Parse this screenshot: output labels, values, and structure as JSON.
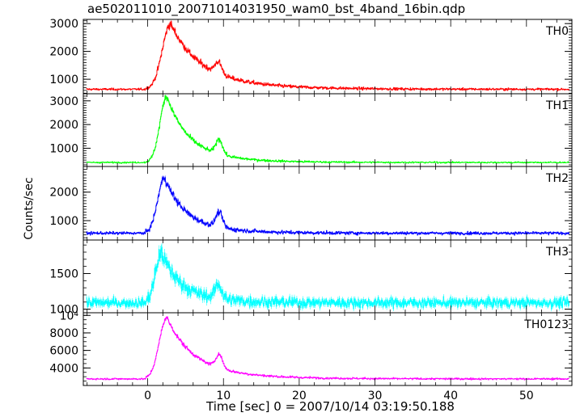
{
  "figure": {
    "title": "ae502011010_20071014031950_wam0_bst_4band_16bin.qdp",
    "xlabel": "Time [sec] 0 = 2007/10/14 03:19:50.188",
    "ylabel": "Counts/sec"
  },
  "chart_data": [
    {
      "type": "line",
      "panel": "TH0",
      "series": [
        {
          "name": "TH0",
          "color": "#ff0000"
        }
      ],
      "xlim": [
        -8.5,
        56
      ],
      "ylim": [
        480,
        3150
      ],
      "yticks": [
        1000,
        2000,
        3000
      ],
      "ytick_labels": [
        "1000",
        "2000",
        "3000"
      ],
      "profile": {
        "baseline": 640,
        "noise": 30,
        "peak1_t": 3.0,
        "peak1_amp": 2350,
        "peak2_t": 9.3,
        "peak2_amp": 420,
        "rise_tau": 1.1,
        "decay_tau": 3.6
      }
    },
    {
      "type": "line",
      "panel": "TH1",
      "series": [
        {
          "name": "TH1",
          "color": "#00ff00"
        }
      ],
      "xlim": [
        -8.5,
        56
      ],
      "ylim": [
        230,
        3300
      ],
      "yticks": [
        1000,
        2000,
        3000
      ],
      "ytick_labels": [
        "1000",
        "2000",
        "3000"
      ],
      "profile": {
        "baseline": 400,
        "noise": 25,
        "peak1_t": 2.5,
        "peak1_amp": 2800,
        "peak2_t": 9.4,
        "peak2_amp": 620,
        "rise_tau": 0.9,
        "decay_tau": 2.6
      }
    },
    {
      "type": "line",
      "panel": "TH2",
      "series": [
        {
          "name": "TH2",
          "color": "#0000ff"
        }
      ],
      "xlim": [
        -8.5,
        56
      ],
      "ylim": [
        320,
        2900
      ],
      "yticks": [
        1000,
        2000
      ],
      "ytick_labels": [
        "1000",
        "2000"
      ],
      "profile": {
        "baseline": 560,
        "noise": 40,
        "peak1_t": 2.2,
        "peak1_amp": 1950,
        "peak2_t": 9.4,
        "peak2_amp": 520,
        "rise_tau": 0.9,
        "decay_tau": 2.5
      }
    },
    {
      "type": "line",
      "panel": "TH3",
      "series": [
        {
          "name": "TH3",
          "color": "#00ffff"
        }
      ],
      "xlim": [
        -8.5,
        56
      ],
      "ylim": [
        950,
        1970
      ],
      "yticks": [
        1000,
        1500
      ],
      "ytick_labels": [
        "1000",
        "1500"
      ],
      "profile": {
        "baseline": 1090,
        "noise": 55,
        "peak1_t": 1.8,
        "peak1_amp": 700,
        "peak2_t": 9.3,
        "peak2_amp": 200,
        "rise_tau": 0.8,
        "decay_tau": 2.3
      }
    },
    {
      "type": "line",
      "panel": "TH0123",
      "series": [
        {
          "name": "TH0123",
          "color": "#ff00ff"
        }
      ],
      "xlim": [
        -8.5,
        56
      ],
      "ylim": [
        2000,
        10300
      ],
      "yticks": [
        4000,
        6000,
        8000,
        10000
      ],
      "ytick_labels": [
        "4000",
        "6000",
        "8000",
        "10⁴"
      ],
      "profile": {
        "baseline": 2750,
        "noise": 80,
        "peak1_t": 2.5,
        "peak1_amp": 7000,
        "peak2_t": 9.4,
        "peak2_amp": 1550,
        "rise_tau": 1.0,
        "decay_tau": 3.2
      }
    }
  ],
  "xaxis": {
    "ticks": [
      0,
      10,
      20,
      30,
      40,
      50
    ],
    "tick_labels": [
      "0",
      "10",
      "20",
      "30",
      "40",
      "50"
    ]
  }
}
